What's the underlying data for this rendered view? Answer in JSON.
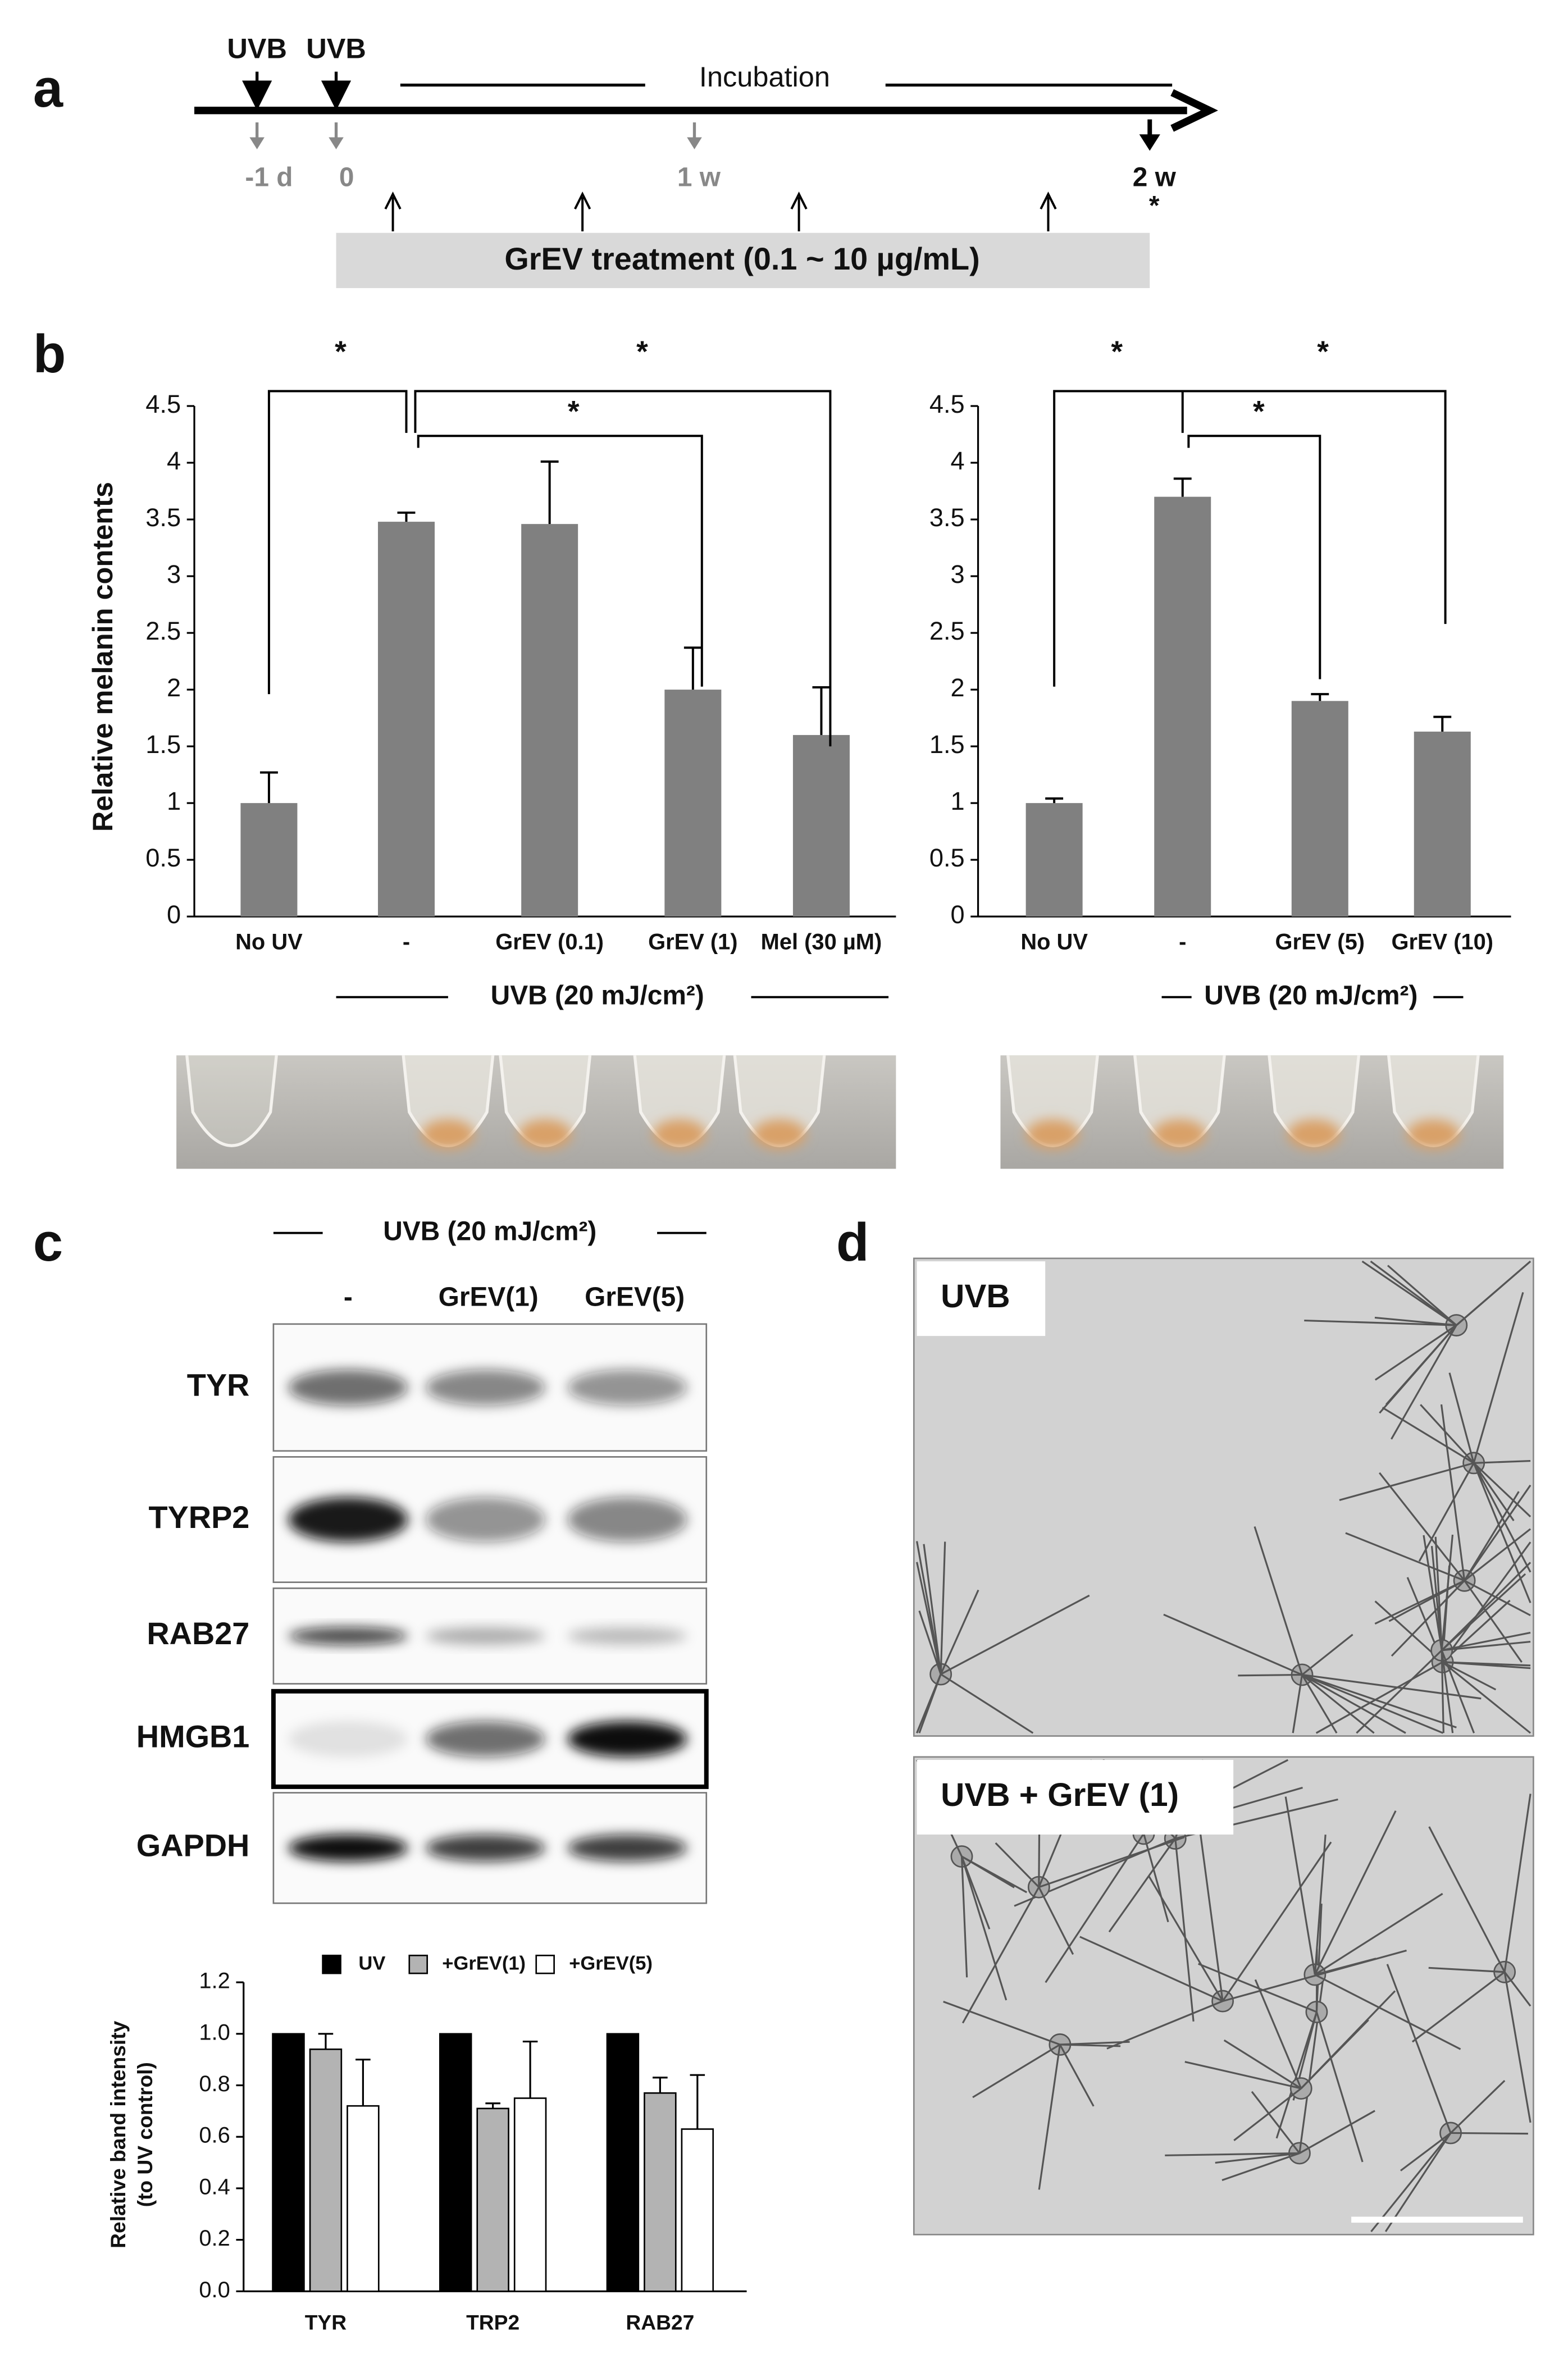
{
  "panel_labels": [
    "a",
    "b",
    "c",
    "d"
  ],
  "timeline": {
    "treatments": [
      "UVB",
      "UVB"
    ],
    "incubation": "Incubation",
    "timepoints": [
      "-1 d",
      "0",
      "1 w",
      "2 w"
    ],
    "asterisk": "*",
    "treatment_bar": "GrEV treatment (0.1 ~ 10 µg/mL)"
  },
  "chart_data": [
    {
      "type": "bar",
      "ylabel": "Relative melanin contents",
      "categories": [
        "No UV",
        "-",
        "GrEV (0.1)",
        "GrEV (1)",
        "Mel (30 µM)"
      ],
      "values": [
        1,
        3.48,
        3.46,
        2,
        1.6
      ],
      "errors": [
        0.27,
        0.08,
        0.55,
        0.37,
        0.42
      ],
      "color": "#808080",
      "ylim": [
        0,
        4.5
      ],
      "yticks": [
        0,
        0.5,
        1,
        1.5,
        2,
        2.5,
        3,
        3.5,
        4,
        4.5
      ],
      "group_label": "UVB (20 mJ/cm²)",
      "significance": [
        "*",
        "*",
        "*"
      ]
    },
    {
      "type": "bar",
      "categories": [
        "No UV",
        "-",
        "GrEV (5)",
        "GrEV (10)"
      ],
      "values": [
        1,
        3.7,
        1.9,
        1.63
      ],
      "errors": [
        0.04,
        0.16,
        0.06,
        0.13
      ],
      "color": "#808080",
      "ylim": [
        0,
        4.5
      ],
      "yticks": [
        0,
        0.5,
        1,
        1.5,
        2,
        2.5,
        3,
        3.5,
        4,
        4.5
      ],
      "group_label": "UVB (20 mJ/cm²)",
      "significance": [
        "*",
        "*",
        "*"
      ]
    },
    {
      "type": "grouped_bar",
      "ylabel": [
        "Relative band intensity",
        "(to UV control)"
      ],
      "categories": [
        "TYR",
        "TRP2",
        "RAB27"
      ],
      "series": [
        {
          "name": "UV",
          "color": "#000000",
          "values": [
            1,
            1,
            1
          ]
        },
        {
          "name": "+GrEV(1)",
          "color": "#b3b3b3",
          "values": [
            0.94,
            0.71,
            0.77
          ],
          "errors": [
            0.06,
            0.02,
            0.06
          ]
        },
        {
          "name": "+GrEV(5)",
          "color": "#ffffff",
          "values": [
            0.72,
            0.75,
            0.63
          ],
          "errors": [
            0.18,
            0.22,
            0.21
          ]
        }
      ],
      "ylim": [
        0,
        1.2
      ],
      "yticks": [
        {
          "value": 0,
          "label": "0.0"
        },
        {
          "value": 0.2,
          "label": "0.2"
        },
        {
          "value": 0.4,
          "label": "0.4"
        },
        {
          "value": 0.6,
          "label": "0.6"
        },
        {
          "value": 0.8,
          "label": "0.8"
        },
        {
          "value": 1,
          "label": "1.0"
        },
        {
          "value": 1.2,
          "label": "1.2"
        }
      ],
      "legend": "top"
    }
  ],
  "blot": {
    "condition": "UVB (20 mJ/cm²)",
    "lanes": [
      "-",
      "GrEV(1)",
      "GrEV(5)"
    ],
    "proteins": [
      "TYR",
      "TYRP2",
      "RAB27",
      "HMGB1",
      "GAPDH"
    ]
  },
  "micrographs": [
    "UVB",
    "UVB + GrEV (1)"
  ]
}
